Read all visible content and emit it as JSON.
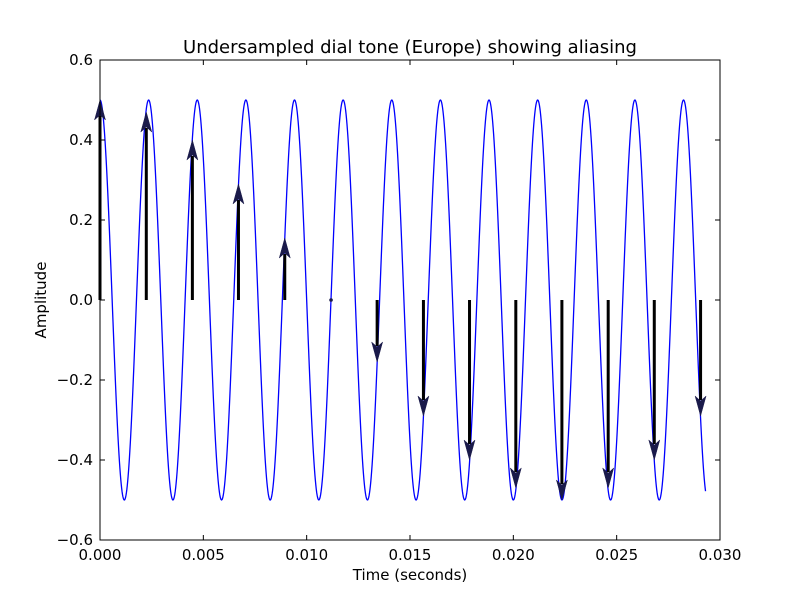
{
  "chart_data": {
    "type": "line",
    "title": "Undersampled dial tone (Europe) showing aliasing",
    "xlabel": "Time (seconds)",
    "ylabel": "Amplitude",
    "xlim": [
      0.0,
      0.03
    ],
    "ylim": [
      -0.6,
      0.6
    ],
    "xticks": [
      0.0,
      0.005,
      0.01,
      0.015,
      0.02,
      0.025,
      0.03
    ],
    "xtick_labels": [
      "0.000",
      "0.005",
      "0.010",
      "0.015",
      "0.020",
      "0.025",
      "0.030"
    ],
    "yticks": [
      -0.6,
      -0.4,
      -0.2,
      0.0,
      0.2,
      0.4,
      0.6
    ],
    "ytick_labels": [
      "−0.6",
      "−0.4",
      "−0.2",
      "0.0",
      "0.2",
      "0.4",
      "0.6"
    ],
    "grid": false,
    "series": [
      {
        "kind": "line",
        "color": "#0000ff",
        "amplitude": 0.5,
        "frequency_hz": 425,
        "x_start": 0.0,
        "x_end": 0.0293
      },
      {
        "kind": "stem-arrows",
        "color": "#000000",
        "head_color": "#1a1a4a",
        "x": [
          0.0,
          0.00224,
          0.00447,
          0.0067,
          0.00894,
          0.01118,
          0.01341,
          0.01565,
          0.01788,
          0.02012,
          0.02235,
          0.02459,
          0.02682,
          0.02906
        ],
        "y": [
          0.5,
          0.47,
          0.4,
          0.29,
          0.155,
          0.0,
          -0.155,
          -0.29,
          -0.4,
          -0.47,
          -0.5,
          -0.47,
          -0.4,
          -0.29
        ]
      }
    ]
  }
}
